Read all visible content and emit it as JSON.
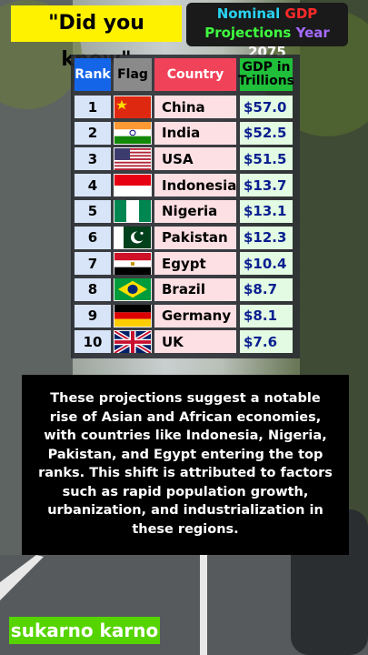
{
  "header": {
    "badge": "\"Did you know\"",
    "title": [
      "Nominal",
      "GDP",
      "Projections",
      "Year",
      "2075"
    ]
  },
  "table": {
    "columns": [
      "Rank",
      "Flag",
      "Country",
      "GDP in Trillions"
    ],
    "rows": [
      [
        1,
        "China",
        "$57.0"
      ],
      [
        2,
        "India",
        "$52.5"
      ],
      [
        3,
        "USA",
        "$51.5"
      ],
      [
        4,
        "Indonesia",
        "$13.7"
      ],
      [
        5,
        "Nigeria",
        "$13.1"
      ],
      [
        6,
        "Pakistan",
        "$12.3"
      ],
      [
        7,
        "Egypt",
        "$10.4"
      ],
      [
        8,
        "Brazil",
        "$8.7"
      ],
      [
        9,
        "Germany",
        "$8.1"
      ],
      [
        10,
        "UK",
        "$7.6"
      ]
    ]
  },
  "caption": "These projections suggest a notable rise of Asian and African economies, with countries like Indonesia, Nigeria, Pakistan, and Egypt entering the top ranks. This shift is attributed to factors such as rapid population growth, urbanization, and industrialization in these regions.",
  "footer": "sukarno karno"
}
